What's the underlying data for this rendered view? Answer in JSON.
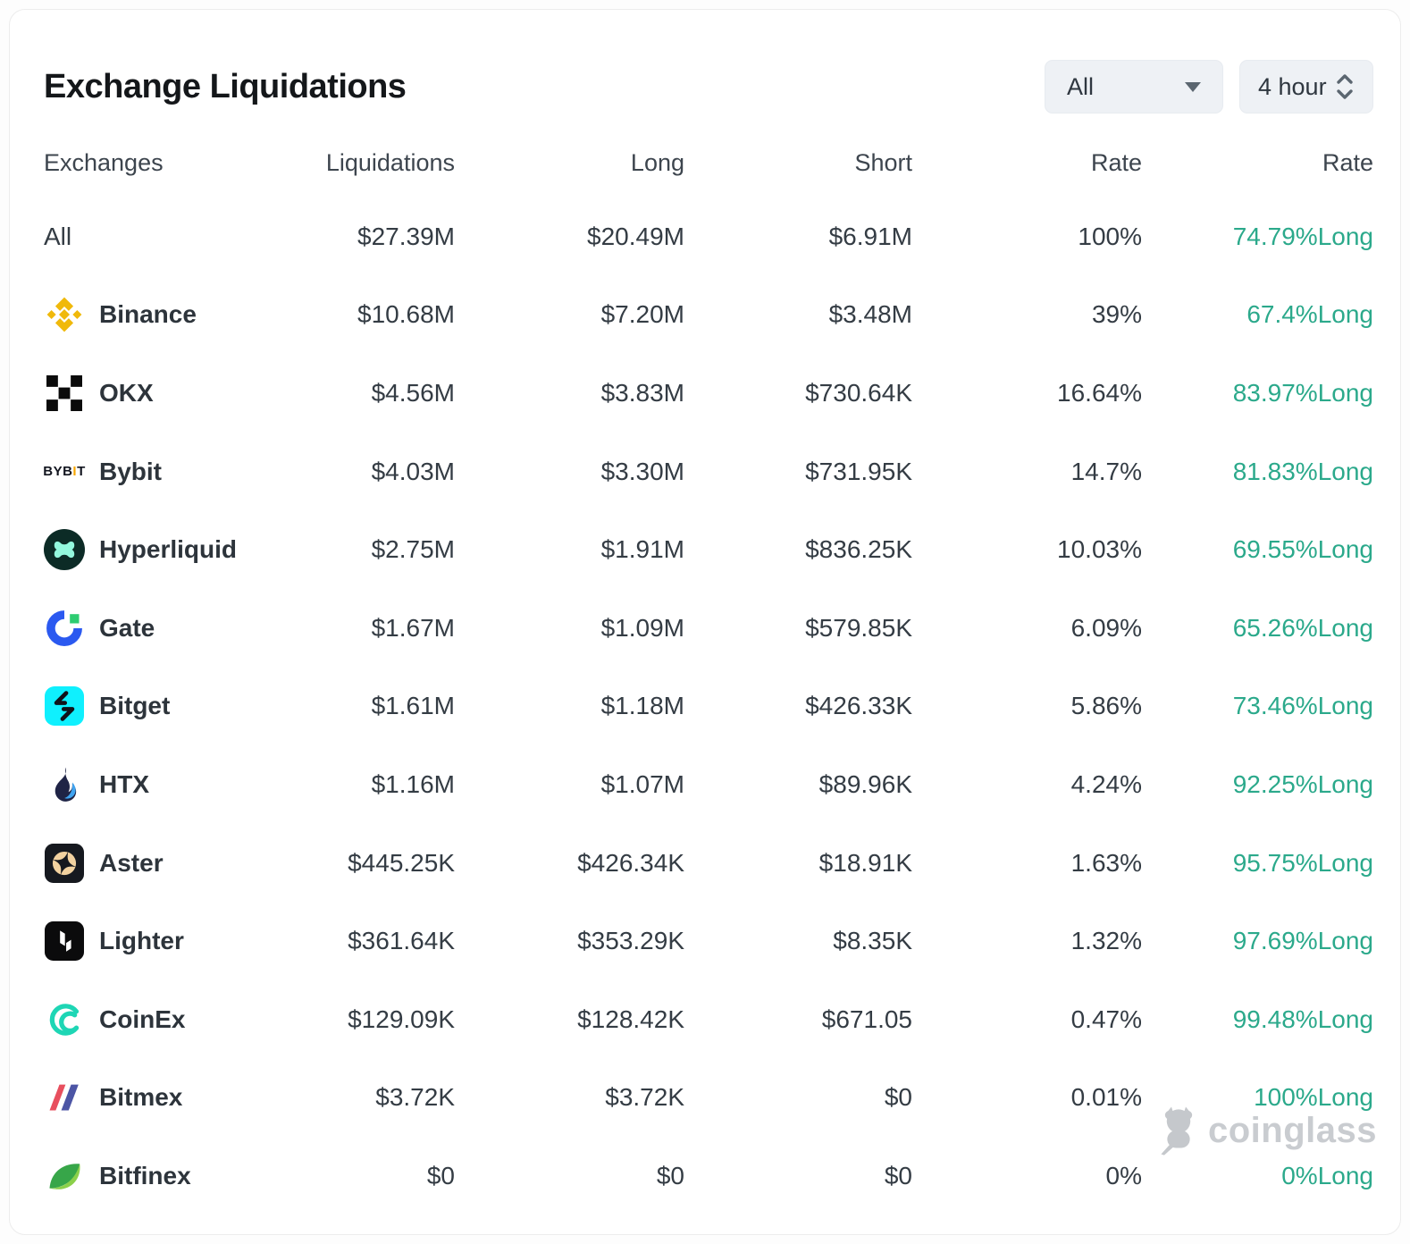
{
  "header": {
    "title": "Exchange Liquidations",
    "exchange_filter": "All",
    "timeframe_filter": "4 hour"
  },
  "table": {
    "columns": [
      "Exchanges",
      "Liquidations",
      "Long",
      "Short",
      "Rate",
      "Rate"
    ],
    "rows": [
      {
        "name": "All",
        "icon": "none",
        "liquidations": "$27.39M",
        "long": "$20.49M",
        "short": "$6.91M",
        "rate": "100%",
        "long_rate": "74.79%Long"
      },
      {
        "name": "Binance",
        "icon": "binance",
        "liquidations": "$10.68M",
        "long": "$7.20M",
        "short": "$3.48M",
        "rate": "39%",
        "long_rate": "67.4%Long"
      },
      {
        "name": "OKX",
        "icon": "okx",
        "liquidations": "$4.56M",
        "long": "$3.83M",
        "short": "$730.64K",
        "rate": "16.64%",
        "long_rate": "83.97%Long"
      },
      {
        "name": "Bybit",
        "icon": "bybit",
        "liquidations": "$4.03M",
        "long": "$3.30M",
        "short": "$731.95K",
        "rate": "14.7%",
        "long_rate": "81.83%Long"
      },
      {
        "name": "Hyperliquid",
        "icon": "hyperliquid",
        "liquidations": "$2.75M",
        "long": "$1.91M",
        "short": "$836.25K",
        "rate": "10.03%",
        "long_rate": "69.55%Long"
      },
      {
        "name": "Gate",
        "icon": "gate",
        "liquidations": "$1.67M",
        "long": "$1.09M",
        "short": "$579.85K",
        "rate": "6.09%",
        "long_rate": "65.26%Long"
      },
      {
        "name": "Bitget",
        "icon": "bitget",
        "liquidations": "$1.61M",
        "long": "$1.18M",
        "short": "$426.33K",
        "rate": "5.86%",
        "long_rate": "73.46%Long"
      },
      {
        "name": "HTX",
        "icon": "htx",
        "liquidations": "$1.16M",
        "long": "$1.07M",
        "short": "$89.96K",
        "rate": "4.24%",
        "long_rate": "92.25%Long"
      },
      {
        "name": "Aster",
        "icon": "aster",
        "liquidations": "$445.25K",
        "long": "$426.34K",
        "short": "$18.91K",
        "rate": "1.63%",
        "long_rate": "95.75%Long"
      },
      {
        "name": "Lighter",
        "icon": "lighter",
        "liquidations": "$361.64K",
        "long": "$353.29K",
        "short": "$8.35K",
        "rate": "1.32%",
        "long_rate": "97.69%Long"
      },
      {
        "name": "CoinEx",
        "icon": "coinex",
        "liquidations": "$129.09K",
        "long": "$128.42K",
        "short": "$671.05",
        "rate": "0.47%",
        "long_rate": "99.48%Long"
      },
      {
        "name": "Bitmex",
        "icon": "bitmex",
        "liquidations": "$3.72K",
        "long": "$3.72K",
        "short": "$0",
        "rate": "0.01%",
        "long_rate": "100%Long"
      },
      {
        "name": "Bitfinex",
        "icon": "bitfinex",
        "liquidations": "$0",
        "long": "$0",
        "short": "$0",
        "rate": "0%",
        "long_rate": "0%Long"
      }
    ]
  },
  "watermark": {
    "text": "coinglass"
  },
  "colors": {
    "accent_long_green": "#2BA98B",
    "binance_yellow": "#F0B90B",
    "bybit_orange": "#f7a600",
    "bitget_cyan": "#0ff0fe",
    "gate_blue": "#2b59f0",
    "watermark_gray": "#c9ccd0"
  }
}
